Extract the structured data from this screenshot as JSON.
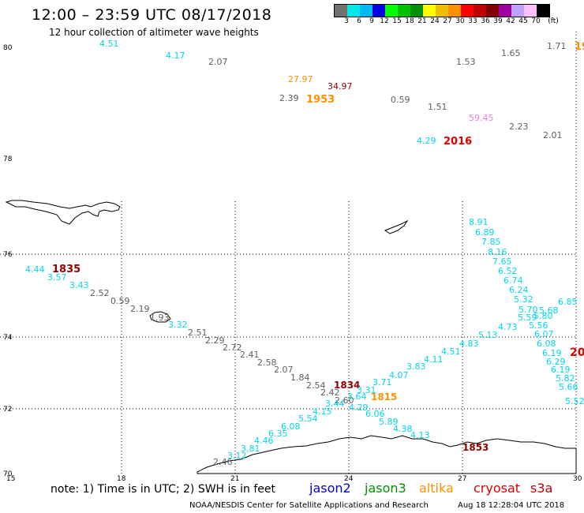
{
  "header": {
    "title": "12:00 – 23:59 UTC 08/17/2018",
    "subtitle": "12 hour collection of altimeter wave heights"
  },
  "legend": {
    "colors": [
      "#707070",
      "#00e8e8",
      "#00b8f0",
      "#0000e0",
      "#00ff00",
      "#00c000",
      "#009000",
      "#ffff00",
      "#f0c000",
      "#ff9000",
      "#ff0000",
      "#c00000",
      "#800000",
      "#a000a0",
      "#c0a0ff",
      "#ffc0ff",
      "#000000"
    ],
    "labels": [
      "3",
      "6",
      "9",
      "12",
      "15",
      "18",
      "21",
      "24",
      "27",
      "30",
      "33",
      "36",
      "39",
      "42",
      "45",
      "70",
      "(ft)"
    ]
  },
  "axes": {
    "lat_labels": [
      "80",
      "78",
      "76",
      "74",
      "72",
      "70"
    ],
    "lon_labels": [
      "15",
      "18",
      "21",
      "24",
      "27",
      "30"
    ]
  },
  "footer": {
    "note": "note: 1) Time is in UTC; 2) SWH is in feet",
    "satellites": [
      {
        "name": "jason2",
        "color": "#0000e0"
      },
      {
        "name": "jason3",
        "color": "#009000"
      },
      {
        "name": "altika",
        "color": "#ff9000"
      },
      {
        "name": "cryosat",
        "color": "#e00000"
      },
      {
        "name": "s3a",
        "color": "#c00000"
      }
    ],
    "credit": "NOAA/NESDIS Center for Satellite Applications and Research",
    "timestamp": "Aug 18 12:28:04 UTC 2018"
  },
  "pass_times": [
    "1835",
    "1953",
    "2016",
    "1834",
    "1815",
    "1853",
    "19",
    "20"
  ],
  "wave_heights": [
    "4.51",
    "4.17",
    "2.07",
    "1.53",
    "1.65",
    "1.71",
    "27.97",
    "34.97",
    "2.39",
    "0.59",
    "1.51",
    "59.45",
    "2.23",
    "2.01",
    "4.29",
    "4.44",
    "3.57",
    "3.43",
    "2.52",
    "0.59",
    "2.19",
    "1.93",
    "3.32",
    "2.51",
    "2.29",
    "2.72",
    "2.41",
    "2.58",
    "2.07",
    "1.84",
    "2.54",
    "2.42",
    "2.60",
    "3.31",
    "3.44",
    "3.64",
    "3.71",
    "4.07",
    "3.83",
    "4.11",
    "4.51",
    "4.83",
    "5.13",
    "4.73",
    "8.91",
    "6.89",
    "7.85",
    "8.16",
    "7.65",
    "6.52",
    "6.74",
    "6.24",
    "5.32",
    "5.70",
    "5.68",
    "5.59",
    "5.80",
    "5.56",
    "6.07",
    "6.08",
    "6.19",
    "6.29",
    "6.19",
    "5.82",
    "5.66",
    "5.52",
    "6.85",
    "4.15",
    "4.29",
    "5.54",
    "6.06",
    "5.89",
    "4.38",
    "4.13",
    "6.08",
    "6.35",
    "4.46",
    "3.81",
    "3.12",
    "2.46"
  ]
}
